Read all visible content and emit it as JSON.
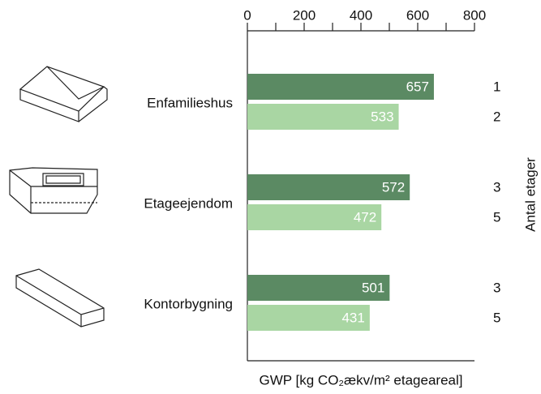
{
  "chart_data": {
    "type": "bar",
    "orientation": "horizontal",
    "categories": [
      "Enfamilieshus",
      "Etageejendom",
      "Kontorbygning"
    ],
    "series": [
      {
        "color": "#5b8a63",
        "values": [
          657,
          572,
          501
        ],
        "floors": [
          1,
          3,
          3
        ]
      },
      {
        "color": "#a9d6a3",
        "values": [
          533,
          472,
          431
        ],
        "floors": [
          2,
          5,
          5
        ]
      }
    ],
    "xlim": [
      0,
      800
    ],
    "xticks": [
      0,
      200,
      400,
      600,
      800
    ],
    "xminorticks": [
      100,
      300,
      500,
      700
    ],
    "xlabel": "GWP [kg CO₂ækv/m² etageareal]",
    "y2label": "Antal etager"
  }
}
